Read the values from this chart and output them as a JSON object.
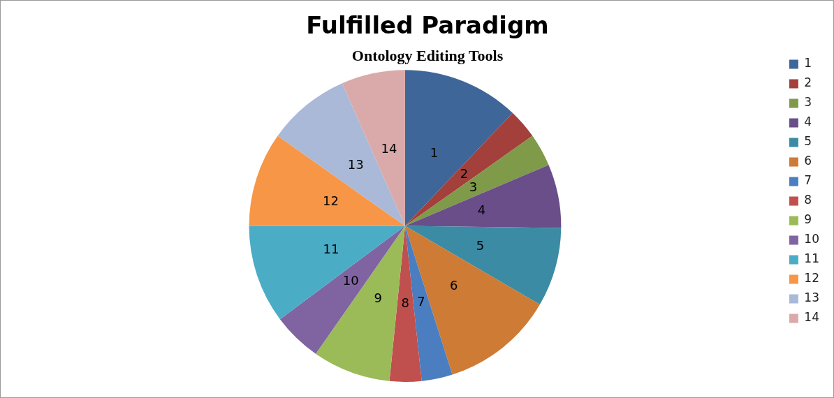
{
  "chart_data": {
    "type": "pie",
    "title": "Fulfilled Paradigm",
    "subtitle": "Ontology Editing Tools",
    "categories": [
      "1",
      "2",
      "3",
      "4",
      "5",
      "6",
      "7",
      "8",
      "9",
      "10",
      "11",
      "12",
      "13",
      "14"
    ],
    "values": [
      12.1,
      3.1,
      3.4,
      6.6,
      8.2,
      11.7,
      3.2,
      3.3,
      8.1,
      5.1,
      10.2,
      9.8,
      8.6,
      6.6
    ],
    "colors": [
      "#3f6698",
      "#a3403c",
      "#7f9a48",
      "#6a4e8a",
      "#3a8ba3",
      "#cd7b35",
      "#4a7ec0",
      "#c0504d",
      "#9bbb59",
      "#8064a2",
      "#4bacc6",
      "#f79646",
      "#aab9d7",
      "#d9aaa9"
    ],
    "legend": "right"
  }
}
